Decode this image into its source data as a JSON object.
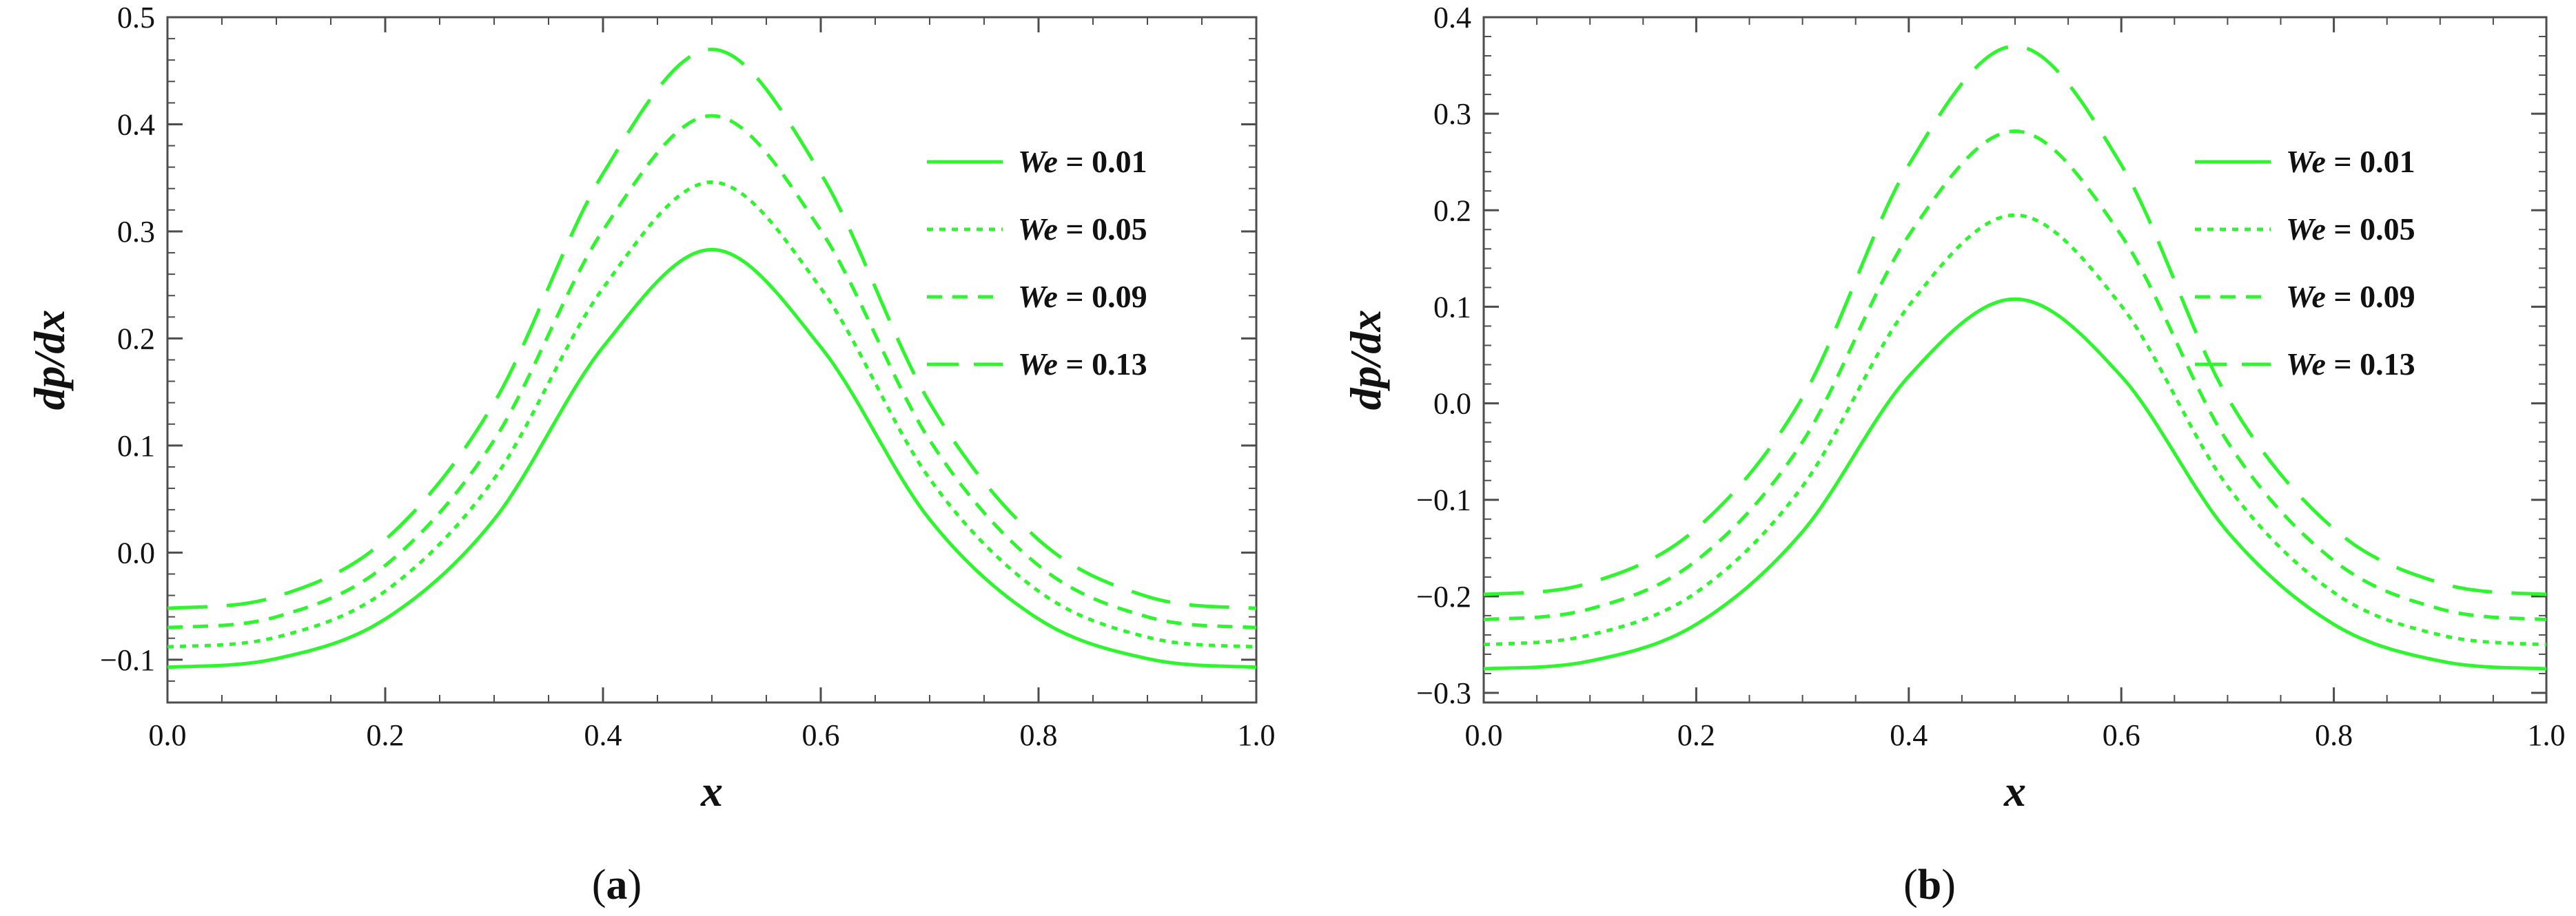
{
  "chart_data": [
    {
      "type": "line",
      "panel_label": "a",
      "xlabel": "x",
      "ylabel": "dp/dx",
      "xlim": [
        0.0,
        1.0
      ],
      "ylim": [
        -0.14,
        0.5
      ],
      "xticks": [
        0.0,
        0.2,
        0.4,
        0.6,
        0.8,
        1.0
      ],
      "xtick_labels": [
        "0.0",
        "0.2",
        "0.4",
        "0.6",
        "0.8",
        "1.0"
      ],
      "yticks": [
        -0.1,
        0.0,
        0.1,
        0.2,
        0.3,
        0.4,
        0.5
      ],
      "ytick_labels": [
        "−0.1",
        "0.0",
        "0.1",
        "0.2",
        "0.3",
        "0.4",
        "0.5"
      ],
      "legend_position": "top-right",
      "x": [
        0.0,
        0.1,
        0.2,
        0.3,
        0.4,
        0.5,
        0.6,
        0.7,
        0.8,
        0.9,
        1.0
      ],
      "series": [
        {
          "name": "We = 0.01",
          "var": "We",
          "eq": " = 0.01",
          "style": "solid",
          "values": [
            -0.107,
            -0.099,
            -0.062,
            0.031,
            0.192,
            0.283,
            0.192,
            0.031,
            -0.062,
            -0.099,
            -0.107
          ]
        },
        {
          "name": "We = 0.05",
          "var": "We",
          "eq": " = 0.05",
          "style": "dotted",
          "values": [
            -0.088,
            -0.079,
            -0.036,
            0.069,
            0.247,
            0.346,
            0.247,
            0.069,
            -0.036,
            -0.079,
            -0.088
          ]
        },
        {
          "name": "We = 0.09",
          "var": "We",
          "eq": " = 0.09",
          "style": "dashed",
          "values": [
            -0.07,
            -0.06,
            -0.012,
            0.105,
            0.301,
            0.408,
            0.301,
            0.105,
            -0.012,
            -0.06,
            -0.07
          ]
        },
        {
          "name": "We = 0.13",
          "var": "We",
          "eq": " = 0.13",
          "style": "longdash",
          "values": [
            -0.052,
            -0.041,
            0.012,
            0.14,
            0.354,
            0.47,
            0.354,
            0.14,
            0.012,
            -0.041,
            -0.052
          ]
        }
      ]
    },
    {
      "type": "line",
      "panel_label": "b",
      "xlabel": "x",
      "ylabel": "dp/dx",
      "xlim": [
        0.0,
        1.0
      ],
      "ylim": [
        -0.31,
        0.4
      ],
      "xticks": [
        0.0,
        0.2,
        0.4,
        0.6,
        0.8,
        1.0
      ],
      "xtick_labels": [
        "0.0",
        "0.2",
        "0.4",
        "0.6",
        "0.8",
        "1.0"
      ],
      "yticks": [
        -0.3,
        -0.2,
        -0.1,
        0.0,
        0.1,
        0.2,
        0.3,
        0.4
      ],
      "ytick_labels": [
        "−0.3",
        "−0.2",
        "−0.1",
        "0.0",
        "0.1",
        "0.2",
        "0.3",
        "0.4"
      ],
      "legend_position": "top-right",
      "x": [
        0.0,
        0.1,
        0.2,
        0.3,
        0.4,
        0.5,
        0.6,
        0.7,
        0.8,
        0.9,
        1.0
      ],
      "series": [
        {
          "name": "We = 0.01",
          "var": "We",
          "eq": " = 0.01",
          "style": "solid",
          "values": [
            -0.275,
            -0.267,
            -0.229,
            -0.133,
            0.028,
            0.108,
            0.028,
            -0.133,
            -0.229,
            -0.267,
            -0.275
          ]
        },
        {
          "name": "We = 0.05",
          "var": "We",
          "eq": " = 0.05",
          "style": "dotted",
          "values": [
            -0.25,
            -0.24,
            -0.196,
            -0.086,
            0.101,
            0.195,
            0.101,
            -0.086,
            -0.196,
            -0.24,
            -0.25
          ]
        },
        {
          "name": "We = 0.09",
          "var": "We",
          "eq": " = 0.09",
          "style": "dashed",
          "values": [
            -0.224,
            -0.213,
            -0.163,
            -0.04,
            0.174,
            0.282,
            0.174,
            -0.04,
            -0.163,
            -0.213,
            -0.224
          ]
        },
        {
          "name": "We = 0.13",
          "var": "We",
          "eq": " = 0.13",
          "style": "longdash",
          "values": [
            -0.198,
            -0.186,
            -0.13,
            0.006,
            0.247,
            0.37,
            0.247,
            0.006,
            -0.13,
            -0.186,
            -0.198
          ]
        }
      ]
    }
  ],
  "colors": {
    "line": "#2ef52e",
    "axis": "#4d4d4d",
    "text": "#111111"
  }
}
